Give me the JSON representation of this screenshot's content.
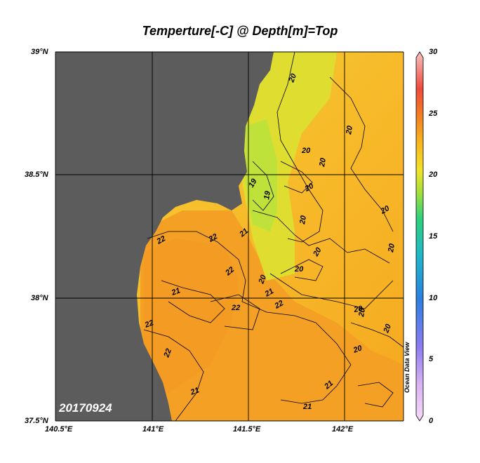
{
  "title": "Temperture[-C] @ Depth[m]=Top",
  "date_label": "20170924",
  "credit": "Ocean Data View",
  "axes": {
    "lon_ticks": [
      "140.5°E",
      "141°E",
      "141.5°E",
      "142°E"
    ],
    "lat_ticks": [
      "39°N",
      "38.5°N",
      "38°N",
      "37.5°N"
    ]
  },
  "colorbar": {
    "min": 0,
    "max": 30,
    "ticks": [
      "30",
      "25",
      "20",
      "15",
      "10",
      "5",
      "0"
    ]
  },
  "contour_labels": [
    "20",
    "20",
    "20",
    "20",
    "20",
    "20",
    "20",
    "20",
    "20",
    "20",
    "20",
    "20",
    "20",
    "19",
    "19",
    "20",
    "22",
    "22",
    "22",
    "22",
    "21",
    "22",
    "22",
    "21",
    "22",
    "21",
    "21",
    "21",
    "21",
    "20"
  ],
  "colors": {
    "land": "#5c5c5c",
    "warm": "#f5a21f",
    "mid": "#f7bf2a",
    "cool": "#dfdc2e",
    "coolest": "#b9e33a"
  }
}
